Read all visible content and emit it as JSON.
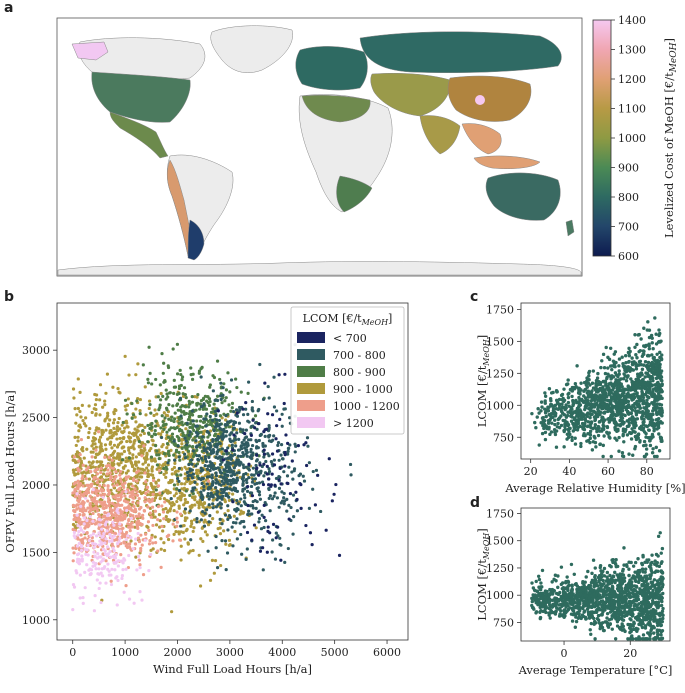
{
  "panels": {
    "a": "a",
    "b": "b",
    "c": "c",
    "d": "d"
  },
  "chart_data": [
    {
      "panel": "a",
      "type": "heatmap",
      "colorbar": {
        "label": "Levelized Cost of MeOH [€/t",
        "label_sub": "MeOH",
        "label_end": "]",
        "ticks": [
          600,
          700,
          800,
          900,
          1000,
          1100,
          1200,
          1300,
          1400
        ],
        "range": [
          600,
          1400
        ],
        "colors": [
          "#0d1b4f",
          "#23466a",
          "#2e6a62",
          "#4b8a55",
          "#8e9a43",
          "#b79a45",
          "#e0a074",
          "#f0a6b2",
          "#f5c8f0"
        ]
      }
    },
    {
      "panel": "b",
      "type": "scatter",
      "xlabel": "Wind Full Load Hours [h/a]",
      "ylabel": "OFPV Full Load Hours [h/a]",
      "xticks": [
        0,
        1000,
        2000,
        3000,
        4000,
        5000,
        6000
      ],
      "yticks": [
        1000,
        1500,
        2000,
        2500,
        3000
      ],
      "xlim": [
        -300,
        6400
      ],
      "ylim": [
        850,
        3350
      ],
      "legend": {
        "title": "LCOM [€/t",
        "title_sub": "MeOH",
        "title_end": "]",
        "position": "top-right",
        "entries": [
          {
            "label": "< 700",
            "color": "#1a2460"
          },
          {
            "label": "700 - 800",
            "color": "#2f5a61"
          },
          {
            "label": "800 - 900",
            "color": "#4f7d47"
          },
          {
            "label": "900 - 1000",
            "color": "#b09a3c"
          },
          {
            "label": "1000 - 1200",
            "color": "#ee9e8b"
          },
          {
            "label": "> 1200",
            "color": "#f2c8f2"
          }
        ]
      }
    },
    {
      "panel": "c",
      "type": "scatter",
      "xlabel": "Average Relative Humidity [%]",
      "ylabel": "LCOM [€/t",
      "ylabel_sub": "MeOH",
      "ylabel_end": "]",
      "xticks": [
        20,
        40,
        60,
        80
      ],
      "yticks": [
        750,
        1000,
        1250,
        1500,
        1750
      ],
      "xlim": [
        15,
        92
      ],
      "ylim": [
        580,
        1800
      ],
      "color": "#2e6b5e"
    },
    {
      "panel": "d",
      "type": "scatter",
      "xlabel": "Average Temperature [°C]",
      "ylabel": "LCOM [€/t",
      "ylabel_sub": "MeOH",
      "ylabel_end": "]",
      "xticks": [
        0,
        20
      ],
      "yticks": [
        750,
        1000,
        1250,
        1500,
        1750
      ],
      "xlim": [
        -13,
        32
      ],
      "ylim": [
        580,
        1800
      ],
      "color": "#2e6b5e"
    }
  ]
}
